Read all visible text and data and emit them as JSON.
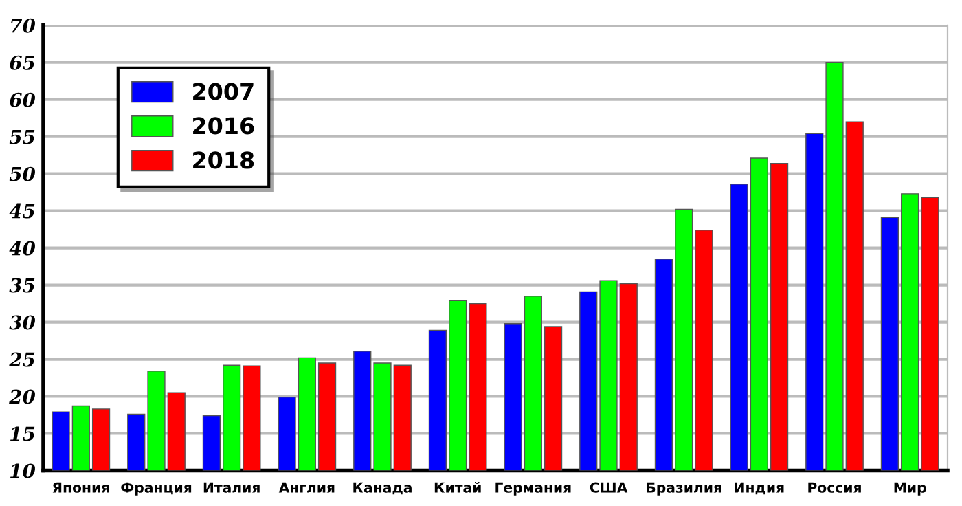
{
  "chart_data": {
    "type": "bar",
    "categories": [
      "Япония",
      "Франция",
      "Италия",
      "Англия",
      "Канада",
      "Китай",
      "Германия",
      "США",
      "Бразилия",
      "Индия",
      "Россия",
      "Мир"
    ],
    "series": [
      {
        "name": "2007",
        "color": "#0000ff",
        "values": [
          17.9,
          17.6,
          17.4,
          19.9,
          26.1,
          28.9,
          29.8,
          34.1,
          38.5,
          48.6,
          55.4,
          44.1
        ]
      },
      {
        "name": "2016",
        "color": "#00ff00",
        "values": [
          18.7,
          23.4,
          24.2,
          25.2,
          24.5,
          32.9,
          33.5,
          35.6,
          45.2,
          52.1,
          65.0,
          47.3
        ]
      },
      {
        "name": "2018",
        "color": "#ff0000",
        "values": [
          18.3,
          20.5,
          24.1,
          24.5,
          24.2,
          32.5,
          29.4,
          35.2,
          42.4,
          51.4,
          57.0,
          46.8
        ]
      }
    ],
    "ylim": [
      10,
      70
    ],
    "yticks": [
      10,
      15,
      20,
      25,
      30,
      35,
      40,
      45,
      50,
      55,
      60,
      65,
      70
    ],
    "grid": "y",
    "legend": "top left"
  }
}
